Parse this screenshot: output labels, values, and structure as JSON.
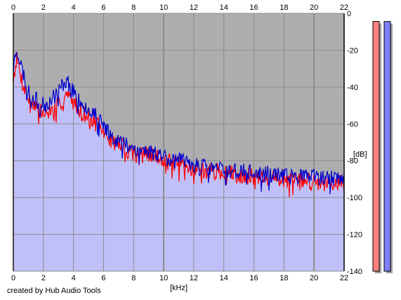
{
  "credit": "created by Hub Audio Tools",
  "colors": {
    "plot_background": "#aeaeb1",
    "fill": "#c0c0f8",
    "grid": "#8c8c8c",
    "left_series": "#ff0000",
    "right_series": "#0000c8",
    "meter_left": "#ff8080",
    "meter_right": "#8080ff"
  },
  "meters": {
    "left_level": 0.99,
    "right_level": 0.99
  },
  "chart_data": {
    "type": "area",
    "xlabel": "[kHz]",
    "ylabel": "[dB]",
    "xlim": [
      0,
      22
    ],
    "ylim": [
      -140,
      0
    ],
    "x_ticks": [
      "0",
      "2",
      "4",
      "6",
      "8",
      "10",
      "12",
      "14",
      "16",
      "18",
      "20",
      "22"
    ],
    "y_ticks": [
      "0",
      "-20",
      "-40",
      "-60",
      "-80",
      "-100",
      "-120",
      "-140"
    ],
    "grid": true,
    "x": [
      0,
      0.2,
      0.5,
      1,
      1.5,
      2,
      2.5,
      3,
      3.5,
      4,
      4.5,
      5,
      5.5,
      6,
      6.5,
      7,
      7.5,
      8,
      8.5,
      9,
      9.5,
      10,
      10.5,
      11,
      11.5,
      12,
      12.5,
      13,
      13.5,
      14,
      14.5,
      15,
      15.5,
      16,
      16.5,
      17,
      17.5,
      18,
      18.5,
      19,
      19.5,
      20,
      20.5,
      21,
      21.5,
      22
    ],
    "series": [
      {
        "channel": "left",
        "values": [
          -36,
          -24,
          -34,
          -47,
          -50,
          -55,
          -53,
          -50,
          -44,
          -48,
          -53,
          -57,
          -60,
          -64,
          -69,
          -71,
          -73,
          -75,
          -76,
          -77,
          -78,
          -79,
          -81,
          -82,
          -83,
          -84,
          -85,
          -86,
          -86,
          -87,
          -87,
          -88,
          -88,
          -89,
          -90,
          -89,
          -90,
          -90,
          -91,
          -90,
          -91,
          -91,
          -92,
          -91,
          -92,
          -92
        ]
      },
      {
        "channel": "right",
        "values": [
          -30,
          -18,
          -28,
          -43,
          -47,
          -50,
          -47,
          -42,
          -36,
          -42,
          -48,
          -52,
          -56,
          -61,
          -66,
          -69,
          -71,
          -73,
          -74,
          -75,
          -76,
          -77,
          -79,
          -80,
          -81,
          -82,
          -83,
          -84,
          -84,
          -85,
          -85,
          -86,
          -86,
          -87,
          -88,
          -87,
          -88,
          -88,
          -89,
          -88,
          -89,
          -89,
          -90,
          -89,
          -90,
          -90
        ]
      }
    ]
  }
}
